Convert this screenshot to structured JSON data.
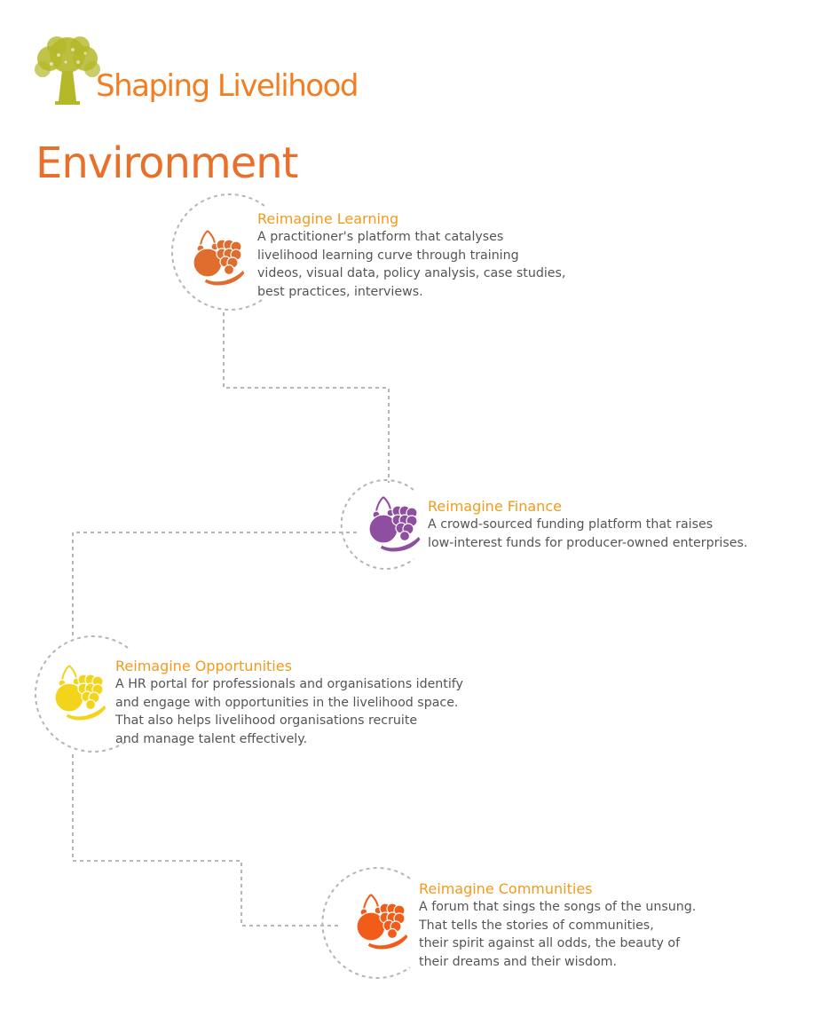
{
  "header": {
    "subtitle": "Shaping Livelihood",
    "title": "Environment"
  },
  "items": [
    {
      "heading": "Reimagine Learning",
      "description": "A practitioner's platform that catalyses\nlivelihood learning curve through training\nvideos, visual data, policy analysis, case studies,\nbest practices, interviews.",
      "icon": "fruit-basket-icon",
      "icon_color": "#e06c2e"
    },
    {
      "heading": "Reimagine Finance",
      "description": "A crowd-sourced funding platform that raises\nlow-interest funds for producer-owned enterprises.",
      "icon": "fruit-basket-icon",
      "icon_color": "#8e4fa0"
    },
    {
      "heading": "Reimagine Opportunities",
      "description": "A HR portal for professionals and organisations identify\nand engage with opportunities in the livelihood space.\nThat also helps livelihood organisations recruite\nand manage talent effectively.",
      "icon": "fruit-basket-icon",
      "icon_color": "#f3d41a"
    },
    {
      "heading": "Reimagine Communities",
      "description": "A forum that sings the songs of the unsung.\nThat tells the stories of communities,\ntheir spirit against all odds, the beauty of\ntheir dreams and their wisdom.",
      "icon": "fruit-basket-icon",
      "icon_color": "#f25c19"
    }
  ],
  "colors": {
    "heading": "#f39a1c",
    "body_text": "#555555",
    "connector": "#b5b5b5",
    "logo": "#b5b829"
  }
}
